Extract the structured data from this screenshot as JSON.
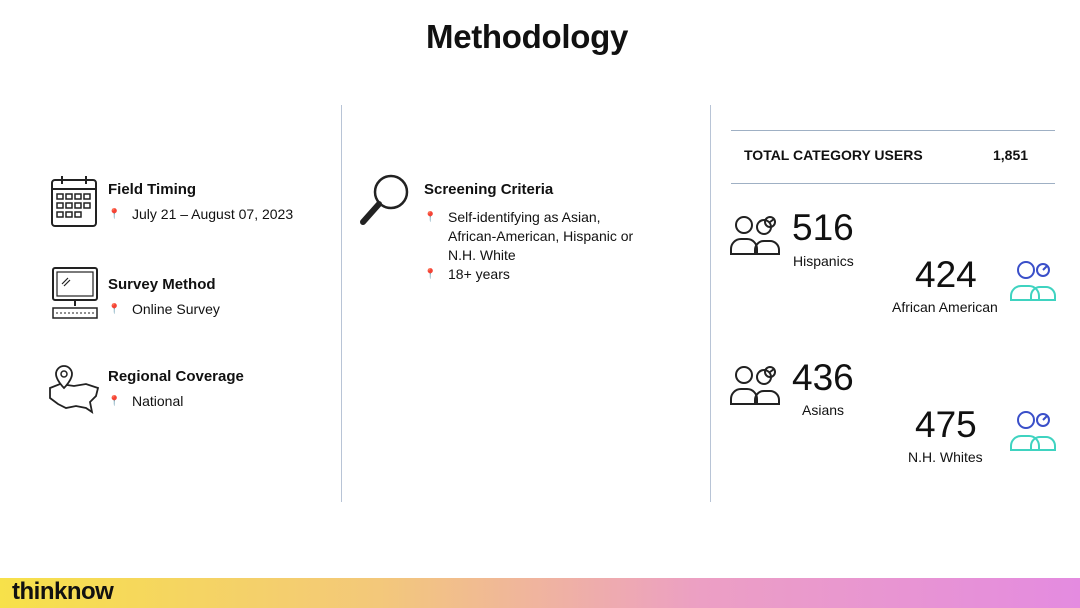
{
  "title": "Methodology",
  "left": {
    "field_timing": {
      "title": "Field Timing",
      "value": "July 21 – August 07, 2023",
      "icon": "calendar-icon"
    },
    "survey_method": {
      "title": "Survey Method",
      "value": "Online Survey",
      "icon": "computer-icon"
    },
    "regional_coverage": {
      "title": "Regional Coverage",
      "value": "National",
      "icon": "map-pin-icon"
    }
  },
  "middle": {
    "title": "Screening Criteria",
    "bullets": [
      "Self-identifying as Asian,\nAfrican-American, Hispanic or\nN.H. White",
      "18+ years"
    ]
  },
  "right": {
    "total_label": "TOTAL CATEGORY USERS",
    "total_value": "1,851",
    "groups": [
      {
        "value": "516",
        "label": "Hispanics"
      },
      {
        "value": "424",
        "label": "African American"
      },
      {
        "value": "436",
        "label": "Asians"
      },
      {
        "value": "475",
        "label": "N.H. Whites"
      }
    ]
  },
  "footer": {
    "brand": "thinknow"
  },
  "colors": {
    "accent_blue": "#3a4fc9",
    "accent_teal": "#3fd3c0",
    "pin": "#cc5555"
  }
}
